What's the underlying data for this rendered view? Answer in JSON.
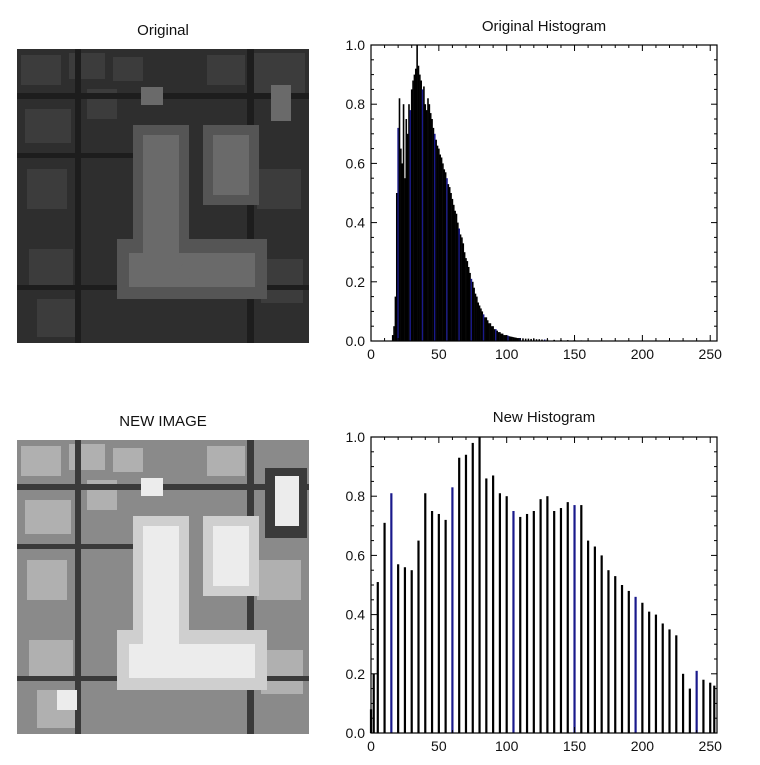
{
  "panels": {
    "original_title": "Original",
    "new_image_title": "NEW IMAGE"
  },
  "colors": {
    "axis": "#000000",
    "bar": "#000000",
    "bar_accent": "#1a1a8c"
  },
  "chart_data": [
    {
      "type": "bar",
      "title": "Original Histogram",
      "xlabel": "",
      "ylabel": "",
      "xlim": [
        0,
        255
      ],
      "ylim": [
        0,
        1.0
      ],
      "xticks": [
        0,
        50,
        100,
        150,
        200,
        250
      ],
      "yticks": [
        0.0,
        0.2,
        0.4,
        0.6,
        0.8,
        1.0
      ],
      "ytick_labels": [
        "0.0",
        "0.2",
        "0.4",
        "0.6",
        "0.8",
        "1.0"
      ],
      "grid": false,
      "x": [
        16,
        17,
        18,
        19,
        20,
        21,
        22,
        23,
        24,
        25,
        26,
        27,
        28,
        29,
        30,
        31,
        32,
        33,
        34,
        35,
        36,
        37,
        38,
        39,
        40,
        41,
        42,
        43,
        44,
        45,
        46,
        47,
        48,
        49,
        50,
        51,
        52,
        53,
        54,
        55,
        56,
        57,
        58,
        59,
        60,
        61,
        62,
        63,
        64,
        65,
        66,
        67,
        68,
        69,
        70,
        71,
        72,
        73,
        74,
        75,
        76,
        77,
        78,
        79,
        80,
        81,
        82,
        83,
        84,
        85,
        86,
        87,
        88,
        89,
        90,
        91,
        92,
        93,
        94,
        95,
        96,
        97,
        98,
        99,
        100,
        101,
        102,
        103,
        104,
        105,
        106,
        107,
        108,
        109,
        110,
        112,
        114,
        116,
        118,
        120,
        122,
        124,
        126,
        128,
        130,
        135,
        140,
        145,
        150,
        155,
        160
      ],
      "values": [
        0.02,
        0.05,
        0.15,
        0.5,
        0.72,
        0.82,
        0.65,
        0.6,
        0.8,
        0.55,
        0.75,
        0.7,
        0.8,
        0.78,
        0.85,
        0.88,
        0.9,
        0.92,
        1.0,
        0.93,
        0.9,
        0.88,
        0.85,
        0.86,
        0.8,
        0.78,
        0.82,
        0.8,
        0.77,
        0.75,
        0.72,
        0.7,
        0.68,
        0.66,
        0.65,
        0.63,
        0.62,
        0.6,
        0.58,
        0.57,
        0.55,
        0.53,
        0.52,
        0.5,
        0.48,
        0.46,
        0.44,
        0.43,
        0.4,
        0.38,
        0.36,
        0.35,
        0.33,
        0.3,
        0.28,
        0.27,
        0.25,
        0.23,
        0.21,
        0.2,
        0.18,
        0.16,
        0.15,
        0.13,
        0.12,
        0.11,
        0.1,
        0.09,
        0.08,
        0.08,
        0.07,
        0.06,
        0.06,
        0.05,
        0.05,
        0.04,
        0.04,
        0.035,
        0.03,
        0.03,
        0.025,
        0.025,
        0.02,
        0.02,
        0.02,
        0.018,
        0.016,
        0.015,
        0.014,
        0.013,
        0.012,
        0.011,
        0.01,
        0.01,
        0.01,
        0.009,
        0.008,
        0.008,
        0.007,
        0.007,
        0.006,
        0.006,
        0.005,
        0.005,
        0.005,
        0.004,
        0.004,
        0.003,
        0.003,
        0.002,
        0.002
      ]
    },
    {
      "type": "bar",
      "title": "New Histogram",
      "xlabel": "",
      "ylabel": "",
      "xlim": [
        0,
        255
      ],
      "ylim": [
        0,
        1.0
      ],
      "xticks": [
        0,
        50,
        100,
        150,
        200,
        250
      ],
      "yticks": [
        0.0,
        0.2,
        0.4,
        0.6,
        0.8,
        1.0
      ],
      "ytick_labels": [
        "0.0",
        "0.2",
        "0.4",
        "0.6",
        "0.8",
        "1.0"
      ],
      "grid": false,
      "x": [
        0,
        2,
        5,
        10,
        15,
        20,
        25,
        30,
        35,
        40,
        45,
        50,
        55,
        60,
        65,
        70,
        75,
        80,
        85,
        90,
        95,
        100,
        105,
        110,
        115,
        120,
        125,
        130,
        135,
        140,
        145,
        150,
        155,
        160,
        165,
        170,
        175,
        180,
        185,
        190,
        195,
        200,
        205,
        210,
        215,
        220,
        225,
        230,
        235,
        240,
        245,
        250,
        253
      ],
      "values": [
        0.08,
        0.2,
        0.51,
        0.71,
        0.81,
        0.57,
        0.56,
        0.55,
        0.65,
        0.81,
        0.75,
        0.74,
        0.72,
        0.83,
        0.93,
        0.94,
        0.98,
        1.0,
        0.86,
        0.87,
        0.81,
        0.8,
        0.75,
        0.73,
        0.74,
        0.75,
        0.79,
        0.8,
        0.75,
        0.76,
        0.78,
        0.77,
        0.77,
        0.65,
        0.63,
        0.6,
        0.55,
        0.53,
        0.5,
        0.48,
        0.46,
        0.44,
        0.41,
        0.4,
        0.37,
        0.35,
        0.33,
        0.2,
        0.15,
        0.21,
        0.18,
        0.17,
        0.16
      ]
    }
  ]
}
